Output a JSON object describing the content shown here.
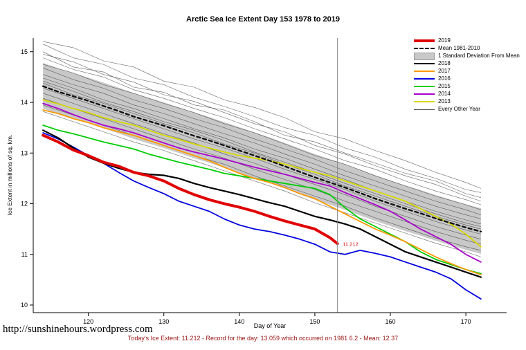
{
  "page": {
    "title": "Arctic Sea Ice Extent Day 153 1978 to 2019",
    "url_text": "http://sunshinehours.wordpress.com",
    "caption": "Today's Ice Extent: 11.212  - Record for the day: 13.059 which occurred on 1981 6.2  - Mean: 12.37"
  },
  "chart_data": {
    "type": "line",
    "title": "Arctic Sea Ice Extent Day 153 1978 to 2019",
    "xlabel": "Day of Year",
    "ylabel": "Ice Extent in millions of sq. km.",
    "xlim": [
      112.7,
      175.4
    ],
    "ylim": [
      9.85,
      15.27
    ],
    "xticks": [
      120,
      130,
      140,
      150,
      160,
      170
    ],
    "yticks": [
      10,
      11,
      12,
      13,
      14,
      15
    ],
    "grid": false,
    "legend_position": "top-right",
    "vline": {
      "x": 153,
      "color": "#888888"
    },
    "annotation": {
      "x": 153.7,
      "y": 11.21,
      "text": "11.212",
      "color": "#dd1111"
    },
    "x_main": [
      114,
      116,
      118,
      120,
      122,
      124,
      126,
      128,
      130,
      132,
      134,
      136,
      138,
      140,
      142,
      144,
      146,
      148,
      150,
      152,
      154,
      156,
      158,
      160,
      162,
      164,
      166,
      168,
      170,
      172
    ],
    "band": {
      "name": "1 Standard Deviation From Mean",
      "color": "#c8c8c8",
      "upper": [
        14.78,
        14.67,
        14.58,
        14.49,
        14.39,
        14.29,
        14.18,
        14.09,
        14.0,
        13.9,
        13.8,
        13.71,
        13.61,
        13.51,
        13.41,
        13.31,
        13.2,
        13.09,
        12.98,
        12.88,
        12.78,
        12.67,
        12.56,
        12.46,
        12.36,
        12.27,
        12.17,
        12.08,
        11.99,
        11.91
      ],
      "lower": [
        13.88,
        13.77,
        13.68,
        13.59,
        13.49,
        13.39,
        13.28,
        13.19,
        13.1,
        13.0,
        12.9,
        12.81,
        12.71,
        12.61,
        12.51,
        12.41,
        12.3,
        12.19,
        12.08,
        11.98,
        11.88,
        11.77,
        11.66,
        11.56,
        11.46,
        11.37,
        11.27,
        11.18,
        11.09,
        11.01
      ]
    },
    "series": [
      {
        "name": "2019",
        "color": "#e00000",
        "width": 4,
        "dash": null,
        "x": [
          114,
          116,
          118,
          120,
          122,
          124,
          126,
          128,
          130,
          132,
          134,
          136,
          138,
          140,
          142,
          144,
          146,
          148,
          150,
          152,
          153
        ],
        "y": [
          13.35,
          13.22,
          13.06,
          12.95,
          12.82,
          12.74,
          12.62,
          12.55,
          12.45,
          12.3,
          12.18,
          12.08,
          12.0,
          11.93,
          11.85,
          11.75,
          11.66,
          11.58,
          11.5,
          11.33,
          11.212
        ]
      },
      {
        "name": "Mean 1981-2010",
        "color": "#111111",
        "width": 2.4,
        "dash": "5,4",
        "y": [
          14.32,
          14.21,
          14.12,
          14.03,
          13.93,
          13.83,
          13.72,
          13.63,
          13.54,
          13.44,
          13.34,
          13.25,
          13.15,
          13.05,
          12.95,
          12.85,
          12.74,
          12.63,
          12.52,
          12.42,
          12.32,
          12.21,
          12.1,
          12.0,
          11.9,
          11.81,
          11.71,
          11.62,
          11.53,
          11.45
        ]
      },
      {
        "name": "2018",
        "color": "#000000",
        "width": 2.2,
        "dash": null,
        "y": [
          13.45,
          13.3,
          13.1,
          12.92,
          12.8,
          12.7,
          12.62,
          12.58,
          12.56,
          12.5,
          12.4,
          12.32,
          12.25,
          12.18,
          12.1,
          12.02,
          11.95,
          11.85,
          11.75,
          11.68,
          11.6,
          11.5,
          11.35,
          11.2,
          11.05,
          10.95,
          10.85,
          10.75,
          10.65,
          10.55
        ]
      },
      {
        "name": "2017",
        "color": "#ff9900",
        "width": 1.8,
        "dash": null,
        "y": [
          13.85,
          13.78,
          13.68,
          13.6,
          13.5,
          13.42,
          13.35,
          13.25,
          13.15,
          13.05,
          12.95,
          12.85,
          12.72,
          12.6,
          12.5,
          12.42,
          12.32,
          12.2,
          12.1,
          11.95,
          11.8,
          11.65,
          11.5,
          11.38,
          11.25,
          11.1,
          10.95,
          10.82,
          10.7,
          10.6
        ]
      },
      {
        "name": "2016",
        "color": "#0000dd",
        "width": 1.8,
        "dash": null,
        "y": [
          13.4,
          13.28,
          13.12,
          12.95,
          12.8,
          12.62,
          12.45,
          12.32,
          12.2,
          12.05,
          11.95,
          11.85,
          11.7,
          11.58,
          11.5,
          11.45,
          11.38,
          11.3,
          11.2,
          11.05,
          11.0,
          11.08,
          11.02,
          10.95,
          10.85,
          10.75,
          10.65,
          10.52,
          10.3,
          10.12
        ]
      },
      {
        "name": "2015",
        "color": "#00cc00",
        "width": 1.8,
        "dash": null,
        "y": [
          13.55,
          13.45,
          13.38,
          13.3,
          13.22,
          13.15,
          13.08,
          12.98,
          12.9,
          12.82,
          12.75,
          12.68,
          12.6,
          12.55,
          12.5,
          12.45,
          12.4,
          12.35,
          12.3,
          12.18,
          11.92,
          11.7,
          11.55,
          11.4,
          11.25,
          11.05,
          10.9,
          10.8,
          10.7,
          10.62
        ]
      },
      {
        "name": "2014",
        "color": "#aa00cc",
        "width": 1.8,
        "dash": null,
        "y": [
          13.98,
          13.88,
          13.76,
          13.65,
          13.55,
          13.48,
          13.4,
          13.3,
          13.2,
          13.1,
          13.02,
          12.95,
          12.88,
          12.8,
          12.72,
          12.65,
          12.58,
          12.5,
          12.42,
          12.35,
          12.22,
          12.1,
          11.98,
          11.85,
          11.68,
          11.5,
          11.35,
          11.2,
          11.0,
          10.85
        ]
      },
      {
        "name": "2013",
        "color": "#d8d800",
        "width": 1.8,
        "dash": null,
        "y": [
          14.05,
          13.97,
          13.88,
          13.8,
          13.7,
          13.62,
          13.55,
          13.45,
          13.35,
          13.27,
          13.18,
          13.1,
          13.02,
          12.95,
          12.9,
          12.85,
          12.78,
          12.7,
          12.62,
          12.55,
          12.45,
          12.35,
          12.25,
          12.15,
          12.05,
          11.9,
          11.75,
          11.6,
          11.4,
          11.15
        ]
      }
    ],
    "every_other_year": {
      "label": "Every Other Year",
      "color": "#3c3c3c",
      "width": 0.6,
      "x": [
        114,
        118,
        122,
        126,
        130,
        134,
        138,
        142,
        146,
        150,
        154,
        158,
        162,
        166,
        170,
        172
      ],
      "lines": [
        [
          15.2,
          15.08,
          14.82,
          14.7,
          14.42,
          14.3,
          14.05,
          13.9,
          13.7,
          13.42,
          13.28,
          13.05,
          12.85,
          12.62,
          12.42,
          12.3
        ],
        [
          15.15,
          14.88,
          14.75,
          14.48,
          14.35,
          14.1,
          13.92,
          13.72,
          13.5,
          13.35,
          13.1,
          12.92,
          12.68,
          12.5,
          12.28,
          12.22
        ],
        [
          14.95,
          14.8,
          14.55,
          14.4,
          14.15,
          14.02,
          13.8,
          13.58,
          13.42,
          13.15,
          12.98,
          12.75,
          12.55,
          12.38,
          12.15,
          12.05
        ],
        [
          14.88,
          14.65,
          14.5,
          14.25,
          14.08,
          13.88,
          13.7,
          13.48,
          13.28,
          13.08,
          12.85,
          12.68,
          12.45,
          12.25,
          12.08,
          11.98
        ],
        [
          14.75,
          14.58,
          14.35,
          14.18,
          13.98,
          13.8,
          13.58,
          13.4,
          13.18,
          12.95,
          12.78,
          12.55,
          12.35,
          12.15,
          11.98,
          11.88
        ],
        [
          14.68,
          14.45,
          14.28,
          14.05,
          13.88,
          13.68,
          13.5,
          13.28,
          13.08,
          12.88,
          12.65,
          12.45,
          12.25,
          12.05,
          11.88,
          11.78
        ],
        [
          14.55,
          14.35,
          14.18,
          13.95,
          13.78,
          13.58,
          13.38,
          13.2,
          12.98,
          12.78,
          12.55,
          12.35,
          12.15,
          11.95,
          11.78,
          11.7
        ],
        [
          14.48,
          14.28,
          14.05,
          13.88,
          13.68,
          13.48,
          13.3,
          13.08,
          12.9,
          12.68,
          12.48,
          12.25,
          12.05,
          11.85,
          11.68,
          11.6
        ],
        [
          14.38,
          14.15,
          13.98,
          13.78,
          13.58,
          13.4,
          13.18,
          13.0,
          12.78,
          12.58,
          12.35,
          12.15,
          11.95,
          11.75,
          11.58,
          11.5
        ],
        [
          14.28,
          14.08,
          13.88,
          13.68,
          13.48,
          13.28,
          13.1,
          12.9,
          12.68,
          12.48,
          12.28,
          12.05,
          11.85,
          11.65,
          11.48,
          11.4
        ],
        [
          14.18,
          13.98,
          13.78,
          13.58,
          13.38,
          13.2,
          12.98,
          12.8,
          12.58,
          12.38,
          12.18,
          11.95,
          11.75,
          11.55,
          11.38,
          11.3
        ],
        [
          14.08,
          13.88,
          13.68,
          13.48,
          13.28,
          13.08,
          12.9,
          12.68,
          12.48,
          12.28,
          12.05,
          11.85,
          11.65,
          11.45,
          11.28,
          11.2
        ],
        [
          13.95,
          13.75,
          13.55,
          13.35,
          13.15,
          12.95,
          12.78,
          12.55,
          12.35,
          12.15,
          11.95,
          11.72,
          11.52,
          11.32,
          11.15,
          11.08
        ],
        [
          13.82,
          13.62,
          13.42,
          13.22,
          13.05,
          12.85,
          12.65,
          12.45,
          12.25,
          12.02,
          11.82,
          11.62,
          11.42,
          11.22,
          11.05,
          10.95
        ],
        [
          15.0,
          14.7,
          14.6,
          14.3,
          14.2,
          13.95,
          13.85,
          13.62,
          13.35,
          13.22,
          13.0,
          12.8,
          12.6,
          12.45,
          12.2,
          12.12
        ],
        [
          14.42,
          14.22,
          14.0,
          13.82,
          13.62,
          13.45,
          13.25,
          13.02,
          12.82,
          12.62,
          12.4,
          12.2,
          12.0,
          11.8,
          11.62,
          11.55
        ]
      ]
    },
    "legend": [
      {
        "label": "2019",
        "type": "line",
        "color": "#e00000",
        "width": 4
      },
      {
        "label": "Mean 1981-2010",
        "type": "dash",
        "color": "#111111",
        "width": 2
      },
      {
        "label": "1 Standard Deviation From Mean",
        "type": "box",
        "color": "#c8c8c8"
      },
      {
        "label": "2018",
        "type": "line",
        "color": "#000000",
        "width": 2
      },
      {
        "label": "2017",
        "type": "line",
        "color": "#ff9900",
        "width": 2
      },
      {
        "label": "2016",
        "type": "line",
        "color": "#0000dd",
        "width": 2
      },
      {
        "label": "2015",
        "type": "line",
        "color": "#00cc00",
        "width": 2
      },
      {
        "label": "2014",
        "type": "line",
        "color": "#aa00cc",
        "width": 2
      },
      {
        "label": "2013",
        "type": "line",
        "color": "#d8d800",
        "width": 2
      },
      {
        "label": "Every Other Year",
        "type": "line",
        "color": "#555555",
        "width": 1
      }
    ]
  }
}
